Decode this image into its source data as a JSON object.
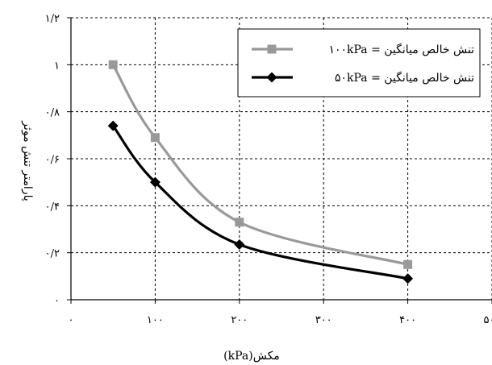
{
  "chart_data": {
    "type": "line",
    "title": "",
    "xlabel": "مکش(kPa)",
    "ylabel": "پارامتر تنش موثر",
    "xlim": [
      0,
      500
    ],
    "ylim": [
      0,
      1.2
    ],
    "x_ticks": [
      0,
      100,
      200,
      300,
      400,
      500
    ],
    "y_ticks": [
      0,
      0.2,
      0.4,
      0.6,
      0.8,
      1.0,
      1.2
    ],
    "x_tick_labels": [
      "۰",
      "۱۰۰",
      "۲۰۰",
      "۳۰۰",
      "۴۰۰",
      "۵۰۰"
    ],
    "y_tick_labels": [
      "۰",
      "۰/۲",
      "۰/۴",
      "۰/۶",
      "۰/۸",
      "۱",
      "۱/۲"
    ],
    "grid": "horizontal and vertical dashed",
    "legend_position": "top-right",
    "series": [
      {
        "name": "تنش خالص میانگین = ۱۰۰kPa",
        "color": "#999999",
        "marker": "square",
        "x": [
          50,
          100,
          200,
          400
        ],
        "y": [
          1.0,
          0.69,
          0.33,
          0.15
        ]
      },
      {
        "name": "تنش خالص میانگین = ۵۰kPa",
        "color": "#000000",
        "marker": "diamond",
        "x": [
          50,
          100,
          200,
          400
        ],
        "y": [
          0.74,
          0.5,
          0.235,
          0.09
        ]
      }
    ]
  }
}
